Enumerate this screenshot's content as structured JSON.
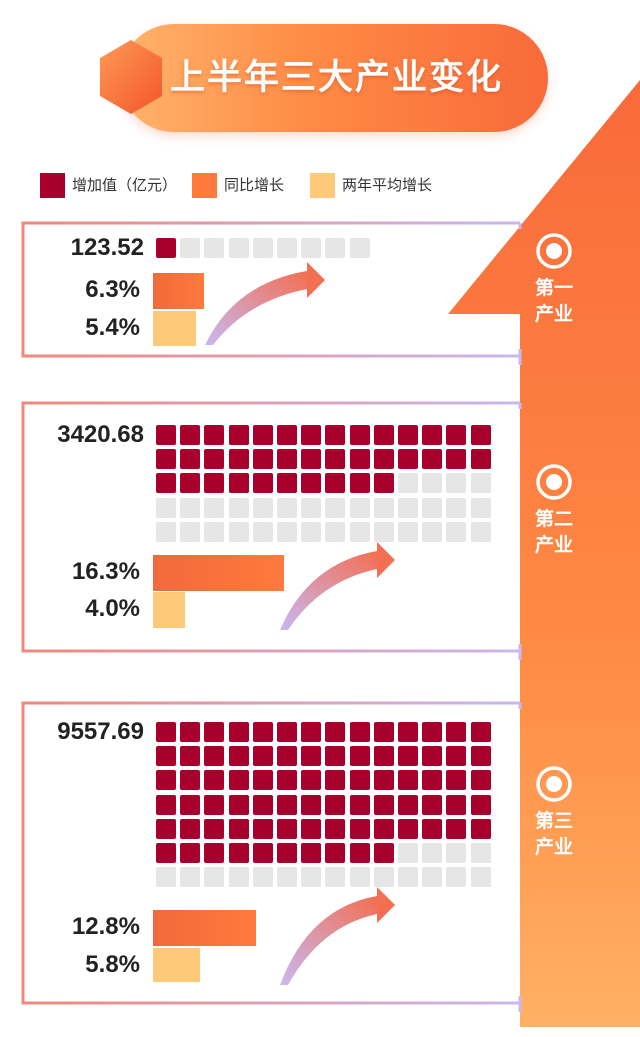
{
  "title": "上半年三大产业变化",
  "colors": {
    "value": "#a8002d",
    "empty": "#e6e6e6",
    "yoy": "#ff7a3c",
    "two_year": "#ffc97a",
    "accent": "#f86a3a"
  },
  "legend": [
    {
      "label": "增加值（亿元）",
      "color": "#a8002d"
    },
    {
      "label": "同比增长",
      "color": "#ff7a3c"
    },
    {
      "label": "两年平均增长",
      "color": "#ffc97a"
    }
  ],
  "sectors": [
    {
      "name_line1": "第一",
      "name_line2": "产业"
    },
    {
      "name_line1": "第二",
      "name_line2": "产业"
    },
    {
      "name_line1": "第三",
      "name_line2": "产业"
    }
  ],
  "chart_data": {
    "type": "bar",
    "categories": [
      "第一产业",
      "第二产业",
      "第三产业"
    ],
    "series": [
      {
        "name": "增加值（亿元）",
        "values": [
          123.52,
          3420.68,
          9557.69
        ],
        "labels": [
          "123.52",
          "3420.68",
          "9557.69"
        ]
      },
      {
        "name": "同比增长",
        "values": [
          6.3,
          16.3,
          12.8
        ],
        "labels": [
          "6.3%",
          "16.3%",
          "12.8%"
        ]
      },
      {
        "name": "两年平均增长",
        "values": [
          5.4,
          4.0,
          5.8
        ],
        "labels": [
          "5.4%",
          "4.0%",
          "5.8%"
        ]
      }
    ],
    "waffle": {
      "filled": [
        1,
        38,
        80
      ],
      "total": [
        9,
        70,
        98
      ]
    }
  }
}
